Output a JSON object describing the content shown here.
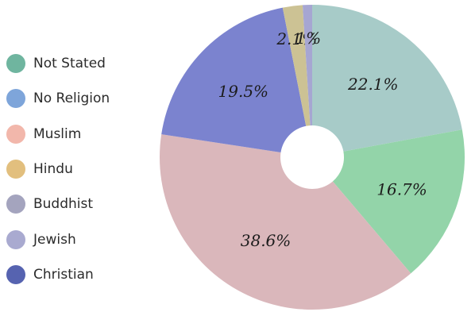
{
  "chart_data": {
    "type": "pie",
    "donut": true,
    "legend_position": "left",
    "slices": [
      {
        "label": "Not Stated",
        "value": 22.1,
        "display": "22.1%",
        "color": "#a7cbc8"
      },
      {
        "label": "No Religion",
        "value": 16.7,
        "display": "16.7%",
        "color": "#93d4a9"
      },
      {
        "label": "Muslim",
        "value": 38.6,
        "display": "38.6%",
        "color": "#dab7bb"
      },
      {
        "label": "Christian",
        "value": 19.5,
        "display": "19.5%",
        "color": "#7b83cf"
      },
      {
        "label": "Hindu",
        "value": 2.1,
        "display": "2.1%",
        "color": "#ccc294"
      },
      {
        "label": "Jewish",
        "value": 1.0,
        "display": "1%",
        "color": "#a6a6d2"
      }
    ],
    "legend": [
      {
        "label": "Not Stated",
        "color": "#6fb59f"
      },
      {
        "label": "No Religion",
        "color": "#7ea5da"
      },
      {
        "label": "Muslim",
        "color": "#f2b7ab"
      },
      {
        "label": "Hindu",
        "color": "#e2bf7e"
      },
      {
        "label": "Buddhist",
        "color": "#a4a4be"
      },
      {
        "label": "Jewish",
        "color": "#a9aad0"
      },
      {
        "label": "Christian",
        "color": "#5663b0"
      }
    ]
  }
}
